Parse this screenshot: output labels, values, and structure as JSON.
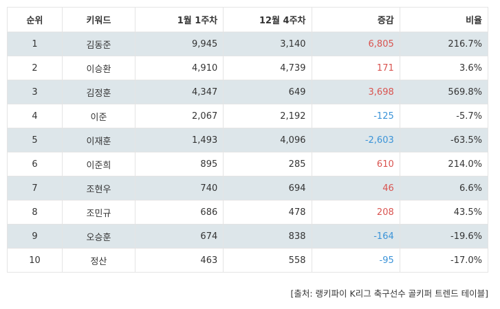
{
  "table": {
    "headers": [
      "순위",
      "키워드",
      "1월 1주차",
      "12월 4주차",
      "증감",
      "비율"
    ],
    "rows": [
      {
        "rank": "1",
        "keyword": "김동준",
        "week1": "9,945",
        "week4": "3,140",
        "change": "6,805",
        "direction": "up",
        "ratio": "216.7%"
      },
      {
        "rank": "2",
        "keyword": "이승환",
        "week1": "4,910",
        "week4": "4,739",
        "change": "171",
        "direction": "up",
        "ratio": "3.6%"
      },
      {
        "rank": "3",
        "keyword": "김정훈",
        "week1": "4,347",
        "week4": "649",
        "change": "3,698",
        "direction": "up",
        "ratio": "569.8%"
      },
      {
        "rank": "4",
        "keyword": "이준",
        "week1": "2,067",
        "week4": "2,192",
        "change": "-125",
        "direction": "down",
        "ratio": "-5.7%"
      },
      {
        "rank": "5",
        "keyword": "이재훈",
        "week1": "1,493",
        "week4": "4,096",
        "change": "-2,603",
        "direction": "down",
        "ratio": "-63.5%"
      },
      {
        "rank": "6",
        "keyword": "이준희",
        "week1": "895",
        "week4": "285",
        "change": "610",
        "direction": "up",
        "ratio": "214.0%"
      },
      {
        "rank": "7",
        "keyword": "조현우",
        "week1": "740",
        "week4": "694",
        "change": "46",
        "direction": "up",
        "ratio": "6.6%"
      },
      {
        "rank": "8",
        "keyword": "조민규",
        "week1": "686",
        "week4": "478",
        "change": "208",
        "direction": "up",
        "ratio": "43.5%"
      },
      {
        "rank": "9",
        "keyword": "오승훈",
        "week1": "674",
        "week4": "838",
        "change": "-164",
        "direction": "down",
        "ratio": "-19.6%"
      },
      {
        "rank": "10",
        "keyword": "정산",
        "week1": "463",
        "week4": "558",
        "change": "-95",
        "direction": "down",
        "ratio": "-17.0%"
      }
    ]
  },
  "source": "[출처: 랭키파이 K리그 축구선수 골키퍼 트렌드 테이블]",
  "colors": {
    "shaded_row": "#dde6ea",
    "positive_change": "#d9534f",
    "negative_change": "#3a93d8",
    "border": "#e4e4e4"
  }
}
